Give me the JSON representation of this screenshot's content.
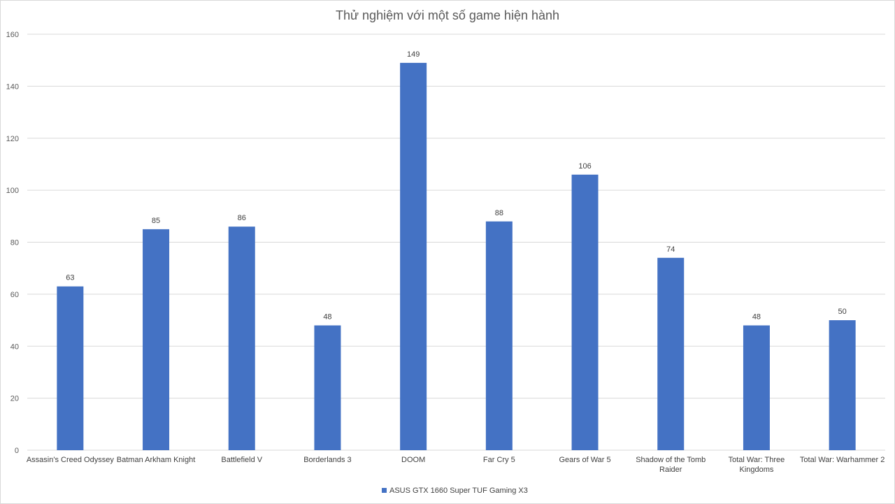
{
  "chart_data": {
    "type": "bar",
    "title": "Thử nghiệm với một số game hiện hành",
    "xlabel": "",
    "ylabel": "",
    "ylim": [
      0,
      160
    ],
    "y_ticks": [
      0,
      20,
      40,
      60,
      80,
      100,
      120,
      140,
      160
    ],
    "grid": true,
    "legend_position": "bottom",
    "categories": [
      "Assasin's Creed Odyssey",
      "Batman Arkham Knight",
      "Battlefield V",
      "Borderlands 3",
      "DOOM",
      "Far Cry 5",
      "Gears of War 5",
      "Shadow of the Tomb Raider",
      "Total War: Three Kingdoms",
      "Total War: Warhammer 2"
    ],
    "series": [
      {
        "name": "ASUS GTX 1660 Super TUF Gaming X3",
        "color": "#4472c4",
        "values": [
          63,
          85,
          86,
          48,
          149,
          88,
          106,
          74,
          48,
          50
        ]
      }
    ]
  }
}
